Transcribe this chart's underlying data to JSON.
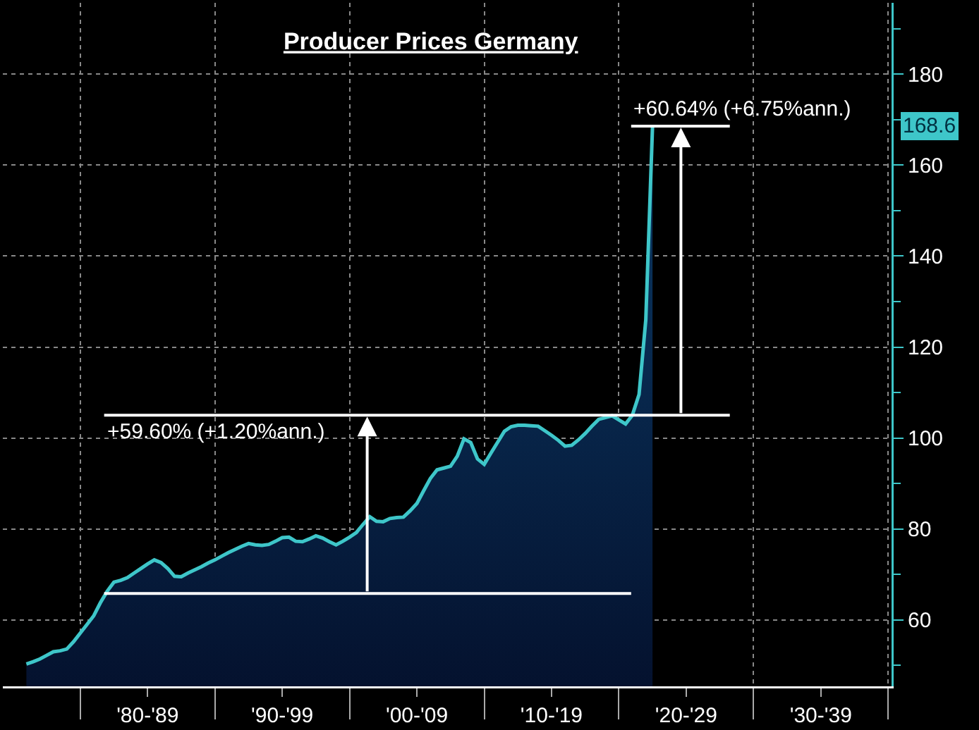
{
  "chart_data": {
    "type": "area",
    "title": "Producer Prices Germany",
    "categories": [
      null,
      null,
      null,
      null,
      null,
      null,
      null,
      null,
      null,
      null,
      null,
      null,
      null,
      null,
      null,
      null,
      null,
      null,
      null,
      null,
      null,
      "'80-'89",
      null,
      null,
      null,
      null,
      null,
      null,
      null,
      null,
      null,
      null,
      null,
      null,
      null,
      null,
      null,
      null,
      null,
      null,
      null,
      "'90-'99",
      null,
      null,
      null,
      null,
      null,
      null,
      null,
      null,
      null,
      null,
      null,
      null,
      null,
      null,
      null,
      null,
      null,
      null,
      null,
      "'00-'09",
      null,
      null,
      null,
      null,
      null,
      null,
      null,
      null,
      null,
      null,
      null,
      null,
      null,
      null,
      null,
      null,
      null,
      null,
      null,
      "'10-'19",
      null,
      null,
      null,
      null,
      null,
      null,
      null,
      null,
      null,
      null,
      null,
      null,
      null,
      null,
      null,
      null,
      null,
      null,
      null,
      "'20-'29",
      null,
      null,
      null,
      null,
      null,
      null,
      null,
      null,
      null,
      null,
      null,
      null,
      null,
      null,
      null,
      null,
      null,
      null,
      null,
      "'30-'39",
      null,
      null,
      null,
      null,
      null,
      null,
      null,
      null,
      null,
      null
    ],
    "series": [
      {
        "color": "#3ec6c9",
        "values": [
          null,
          null,
          null,
          50.3,
          50.8,
          51.4,
          52.2,
          53.0,
          53.2,
          53.6,
          55.2,
          57.1,
          59.0,
          60.9,
          63.8,
          66.3,
          68.3,
          68.7,
          69.3,
          70.3,
          71.3,
          72.3,
          73.2,
          72.6,
          71.3,
          69.6,
          69.5,
          70.3,
          71.0,
          71.7,
          72.5,
          73.2,
          74.0,
          74.8,
          75.5,
          76.2,
          76.8,
          76.5,
          76.4,
          76.6,
          77.3,
          78.1,
          78.2,
          77.3,
          77.2,
          77.8,
          78.5,
          78.0,
          77.2,
          76.5,
          77.3,
          78.2,
          79.2,
          81.0,
          82.7,
          81.7,
          81.6,
          82.3,
          82.5,
          82.6,
          84.0,
          85.6,
          88.4,
          91.1,
          93.0,
          93.4,
          93.8,
          96.0,
          99.8,
          99.0,
          95.4,
          94.2,
          96.7,
          99.1,
          101.5,
          102.5,
          102.8,
          102.8,
          102.7,
          102.6,
          101.6,
          100.6,
          99.5,
          98.2,
          98.4,
          99.6,
          101.0,
          102.6,
          104.1,
          104.5,
          104.9,
          104.0,
          103.1,
          105.0,
          109.6,
          126.0,
          168.6,
          null,
          null,
          null,
          null,
          null,
          null,
          null,
          null,
          null,
          null,
          null,
          null,
          null,
          null,
          null,
          null,
          null,
          null,
          null,
          null,
          null,
          null,
          null,
          null,
          null,
          null,
          null,
          null,
          null,
          null,
          null,
          null,
          null,
          null,
          null
        ]
      }
    ],
    "ylim": [
      45.4,
      195.7
    ],
    "yticks": [
      {
        "value": 50,
        "label": null
      },
      60,
      {
        "value": 70,
        "label": null
      },
      80,
      {
        "value": 90,
        "label": null
      },
      100,
      {
        "value": 110,
        "label": null
      },
      120,
      {
        "value": 130,
        "label": null
      },
      140,
      {
        "value": 150,
        "label": null
      },
      160,
      {
        "value": 170,
        "label": null
      },
      180,
      {
        "value": 190,
        "label": null
      }
    ],
    "ref_lines": [
      {
        "axis": "y",
        "value": 65.8,
        "label": null,
        "color": "#ffffff"
      },
      {
        "axis": "y",
        "value": 105,
        "label": "+59.60% (+1.20%ann.)",
        "color": "#ffffff"
      },
      {
        "axis": "y",
        "value": 168.6,
        "label": "+60.64% (+6.75%ann.)",
        "color": "#ffffff"
      }
    ],
    "annotations": [
      "168.6"
    ],
    "grid": true,
    "marker": "none",
    "line_style": "solid"
  }
}
